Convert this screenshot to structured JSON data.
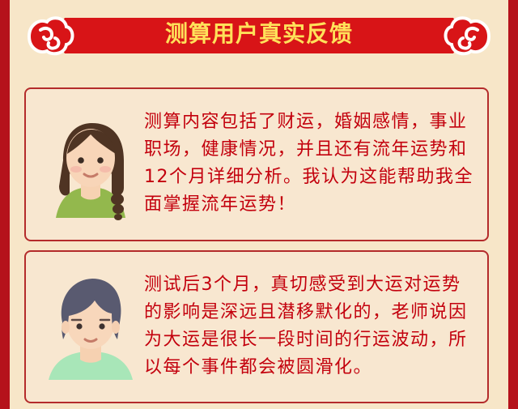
{
  "header": {
    "title": "测算用户真实反馈"
  },
  "reviews": [
    {
      "avatar": "woman-braid-avatar",
      "text": "测算内容包括了财运，婚姻感情，事业职场，健康情况，并且还有流年运势和12个月详细分析。我认为这能帮助我全面掌握流年运势！"
    },
    {
      "avatar": "young-man-avatar",
      "text": "测试后3个月，真切感受到大运对运势的影响是深远且潜移默化的，老师说因为大运是很长一段时间的行运波动，所以每个事件都会被圆滑化。"
    }
  ],
  "colors": {
    "background": "#f7e6c8",
    "banner_red": "#d81417",
    "title_yellow": "#ffe15a",
    "text_red": "#c3000d",
    "card_border": "#b42b2b",
    "frame_red": "#b5121b"
  },
  "icons": {
    "banner_decorations": [
      "cloud-ornament-icon",
      "cloud-ornament-icon"
    ]
  }
}
